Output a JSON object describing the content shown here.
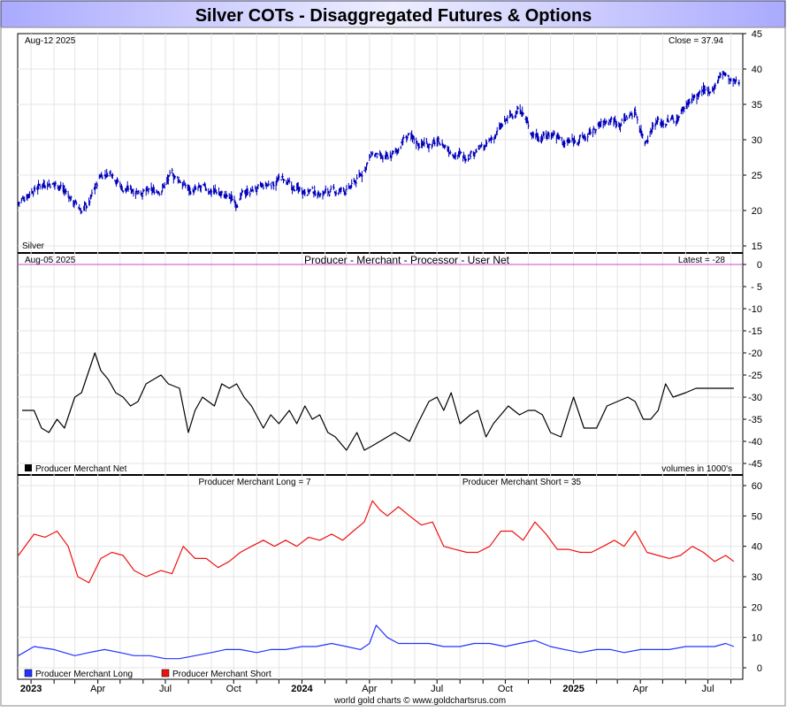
{
  "page": {
    "title": "Silver COTs - Disaggregated Futures & Options",
    "footer": "world gold charts © www.goldchartsrus.com"
  },
  "x_axis": {
    "labels": [
      "2023",
      "Apr",
      "Jul",
      "Oct",
      "2024",
      "Apr",
      "Jul",
      "Oct",
      "2025",
      "Apr",
      "Jul"
    ],
    "bold_labels": [
      "2023",
      "2024",
      "2025"
    ]
  },
  "colors": {
    "price": "#0000bb",
    "net": "#000000",
    "long": "#2233ff",
    "short": "#ee1111",
    "zero_line": "#cc44cc",
    "title_bg_left": "#aaaaff",
    "title_bg_mid": "#eeeeff"
  },
  "panels": {
    "price": {
      "date": "Aug-12  2025",
      "latest": "Close = 37.94",
      "name": "Silver",
      "yticks": [
        "45",
        "40",
        "35",
        "30",
        "25",
        "20",
        "15"
      ]
    },
    "net": {
      "date": "Aug-05  2025",
      "title": "Producer - Merchant - Processor - User Net",
      "latest": "Latest = -28",
      "legend": "Producer Merchant Net",
      "note": "volumes in 1000's",
      "yticks": [
        "0",
        "- 5",
        "-10",
        "-15",
        "-20",
        "-25",
        "-30",
        "-35",
        "-40",
        "-45"
      ]
    },
    "longshort": {
      "long_label": "Producer Merchant Long = 7",
      "short_label": "Producer Merchant Short = 35",
      "legend_long": "Producer Merchant Long",
      "legend_short": "Producer Merchant Short",
      "yticks": [
        "60",
        "50",
        "40",
        "30",
        "20",
        "10",
        "0"
      ]
    }
  },
  "chart_data": [
    {
      "type": "line",
      "title": "Silver",
      "ylim": [
        15,
        45
      ],
      "x": [
        "2022-12-15",
        "2023-01-01",
        "2023-01-20",
        "2023-02-10",
        "2023-03-01",
        "2023-03-10",
        "2023-03-20",
        "2023-04-05",
        "2023-04-20",
        "2023-05-05",
        "2023-05-20",
        "2023-06-10",
        "2023-06-25",
        "2023-07-10",
        "2023-07-20",
        "2023-08-05",
        "2023-08-20",
        "2023-09-05",
        "2023-09-20",
        "2023-10-05",
        "2023-10-20",
        "2023-11-05",
        "2023-11-25",
        "2023-12-05",
        "2023-12-20",
        "2024-01-05",
        "2024-01-20",
        "2024-02-05",
        "2024-02-20",
        "2024-03-05",
        "2024-03-20",
        "2024-04-05",
        "2024-04-20",
        "2024-05-05",
        "2024-05-20",
        "2024-06-05",
        "2024-06-20",
        "2024-07-05",
        "2024-07-20",
        "2024-08-05",
        "2024-08-20",
        "2024-09-05",
        "2024-09-20",
        "2024-10-05",
        "2024-10-22",
        "2024-11-05",
        "2024-11-20",
        "2024-12-05",
        "2024-12-20",
        "2025-01-05",
        "2025-01-20",
        "2025-02-05",
        "2025-02-20",
        "2025-03-05",
        "2025-03-25",
        "2025-04-07",
        "2025-04-20",
        "2025-05-05",
        "2025-05-20",
        "2025-06-05",
        "2025-06-20",
        "2025-07-05",
        "2025-07-22",
        "2025-08-01",
        "2025-08-12"
      ],
      "values": [
        21,
        22.8,
        24,
        23.5,
        21,
        20,
        21,
        25,
        25.5,
        23,
        23,
        22.5,
        23,
        25,
        24.3,
        22.7,
        23,
        22.8,
        22,
        21.3,
        22.8,
        23,
        24,
        24.5,
        23,
        23,
        22.5,
        22.6,
        22.7,
        23,
        25,
        28,
        27,
        28,
        30.5,
        29.5,
        29.5,
        29.5,
        28.5,
        27.5,
        28.5,
        29,
        31,
        33,
        34.5,
        31,
        30.5,
        31,
        29.5,
        30,
        30.5,
        32,
        32.8,
        32.5,
        34,
        29.7,
        32.5,
        32.5,
        33,
        35.5,
        36.3,
        37,
        39.5,
        38,
        37.94
      ]
    },
    {
      "type": "line",
      "title": "Producer - Merchant - Processor - User Net",
      "ylim": [
        -45,
        0
      ],
      "series": [
        {
          "name": "Producer Merchant Net",
          "x": [
            "2022-12-20",
            "2023-01-05",
            "2023-01-15",
            "2023-01-25",
            "2023-02-05",
            "2023-02-15",
            "2023-03-01",
            "2023-03-10",
            "2023-03-20",
            "2023-03-28",
            "2023-04-05",
            "2023-04-15",
            "2023-04-25",
            "2023-05-05",
            "2023-05-15",
            "2023-05-25",
            "2023-06-05",
            "2023-06-15",
            "2023-06-25",
            "2023-07-05",
            "2023-07-20",
            "2023-08-01",
            "2023-08-10",
            "2023-08-20",
            "2023-09-05",
            "2023-09-15",
            "2023-09-25",
            "2023-10-05",
            "2023-10-15",
            "2023-10-25",
            "2023-11-10",
            "2023-11-20",
            "2023-12-01",
            "2023-12-15",
            "2023-12-25",
            "2024-01-05",
            "2024-01-15",
            "2024-01-25",
            "2024-02-05",
            "2024-02-15",
            "2024-03-01",
            "2024-03-15",
            "2024-03-25",
            "2024-04-05",
            "2024-04-15",
            "2024-04-25",
            "2024-05-05",
            "2024-05-15",
            "2024-05-25",
            "2024-06-05",
            "2024-06-20",
            "2024-07-01",
            "2024-07-10",
            "2024-07-20",
            "2024-08-01",
            "2024-08-15",
            "2024-08-25",
            "2024-09-05",
            "2024-09-15",
            "2024-09-25",
            "2024-10-05",
            "2024-10-20",
            "2024-11-01",
            "2024-11-10",
            "2024-11-20",
            "2024-12-01",
            "2024-12-15",
            "2025-01-01",
            "2025-01-15",
            "2025-02-01",
            "2025-02-15",
            "2025-03-01",
            "2025-03-15",
            "2025-03-25",
            "2025-04-05",
            "2025-04-15",
            "2025-04-25",
            "2025-05-05",
            "2025-05-15",
            "2025-06-01",
            "2025-06-15",
            "2025-06-25",
            "2025-07-05",
            "2025-07-15",
            "2025-07-25",
            "2025-08-05"
          ],
          "values": [
            -33,
            -33,
            -37,
            -38,
            -35,
            -37,
            -30,
            -29,
            -24,
            -20,
            -24,
            -26,
            -29,
            -30,
            -32,
            -31,
            -27,
            -26,
            -25,
            -27,
            -28,
            -38,
            -33,
            -30,
            -32,
            -27,
            -28,
            -27,
            -30,
            -32,
            -37,
            -34,
            -36,
            -33,
            -36,
            -32,
            -35,
            -34,
            -38,
            -39,
            -42,
            -38,
            -42,
            -41,
            -40,
            -39,
            -38,
            -39,
            -40,
            -36,
            -31,
            -30,
            -33,
            -29,
            -36,
            -34,
            -33,
            -39,
            -36,
            -34,
            -32,
            -34,
            -33,
            -33,
            -34,
            -38,
            -39,
            -30,
            -37,
            -37,
            -32,
            -31,
            -30,
            -31,
            -35,
            -35,
            -33,
            -27,
            -30,
            -29,
            -28,
            -28,
            -28,
            -28,
            -28,
            -28
          ]
        }
      ]
    },
    {
      "type": "line",
      "title": "Producer Merchant Long / Short",
      "ylim": [
        0,
        60
      ],
      "series": [
        {
          "name": "Producer Merchant Long",
          "x": [
            "2022-12-15",
            "2023-01-05",
            "2023-02-01",
            "2023-03-01",
            "2023-03-20",
            "2023-04-10",
            "2023-05-01",
            "2023-05-20",
            "2023-06-10",
            "2023-07-01",
            "2023-07-20",
            "2023-08-10",
            "2023-09-01",
            "2023-09-20",
            "2023-10-10",
            "2023-11-01",
            "2023-11-20",
            "2023-12-10",
            "2024-01-01",
            "2024-01-20",
            "2024-02-10",
            "2024-03-01",
            "2024-03-20",
            "2024-04-01",
            "2024-04-10",
            "2024-04-25",
            "2024-05-10",
            "2024-06-01",
            "2024-06-20",
            "2024-07-10",
            "2024-08-01",
            "2024-08-20",
            "2024-09-10",
            "2024-10-01",
            "2024-10-20",
            "2024-11-10",
            "2024-12-01",
            "2024-12-20",
            "2025-01-10",
            "2025-02-01",
            "2025-02-20",
            "2025-03-10",
            "2025-04-01",
            "2025-04-20",
            "2025-05-10",
            "2025-06-01",
            "2025-06-20",
            "2025-07-10",
            "2025-07-25",
            "2025-08-05"
          ],
          "values": [
            4,
            7,
            6,
            4,
            5,
            6,
            5,
            4,
            4,
            3,
            3,
            4,
            5,
            6,
            6,
            5,
            6,
            6,
            7,
            7,
            8,
            7,
            6,
            8,
            14,
            10,
            8,
            8,
            8,
            7,
            7,
            8,
            8,
            7,
            8,
            9,
            7,
            6,
            5,
            6,
            6,
            5,
            6,
            6,
            6,
            7,
            7,
            7,
            8,
            7
          ]
        },
        {
          "name": "Producer Merchant Short",
          "x": [
            "2022-12-15",
            "2023-01-05",
            "2023-01-20",
            "2023-02-05",
            "2023-02-20",
            "2023-03-05",
            "2023-03-20",
            "2023-04-05",
            "2023-04-20",
            "2023-05-05",
            "2023-05-20",
            "2023-06-05",
            "2023-06-25",
            "2023-07-10",
            "2023-07-25",
            "2023-08-10",
            "2023-08-25",
            "2023-09-10",
            "2023-09-25",
            "2023-10-10",
            "2023-10-25",
            "2023-11-10",
            "2023-11-25",
            "2023-12-10",
            "2023-12-25",
            "2024-01-10",
            "2024-01-25",
            "2024-02-10",
            "2024-02-25",
            "2024-03-10",
            "2024-03-25",
            "2024-04-05",
            "2024-04-15",
            "2024-04-25",
            "2024-05-10",
            "2024-05-25",
            "2024-06-10",
            "2024-06-25",
            "2024-07-10",
            "2024-07-25",
            "2024-08-10",
            "2024-08-25",
            "2024-09-10",
            "2024-09-25",
            "2024-10-10",
            "2024-10-25",
            "2024-11-10",
            "2024-11-25",
            "2024-12-10",
            "2024-12-25",
            "2025-01-10",
            "2025-01-25",
            "2025-02-10",
            "2025-02-25",
            "2025-03-10",
            "2025-03-25",
            "2025-04-10",
            "2025-04-25",
            "2025-05-10",
            "2025-05-25",
            "2025-06-10",
            "2025-06-25",
            "2025-07-10",
            "2025-07-25",
            "2025-08-05"
          ],
          "values": [
            37,
            44,
            43,
            45,
            40,
            30,
            28,
            36,
            38,
            37,
            32,
            30,
            32,
            31,
            40,
            36,
            36,
            33,
            35,
            38,
            40,
            42,
            40,
            42,
            40,
            43,
            42,
            44,
            42,
            45,
            48,
            55,
            52,
            50,
            53,
            50,
            47,
            48,
            40,
            39,
            38,
            38,
            40,
            45,
            45,
            42,
            48,
            44,
            39,
            39,
            38,
            38,
            40,
            42,
            40,
            45,
            38,
            37,
            36,
            37,
            40,
            38,
            35,
            37,
            35
          ]
        }
      ]
    }
  ]
}
